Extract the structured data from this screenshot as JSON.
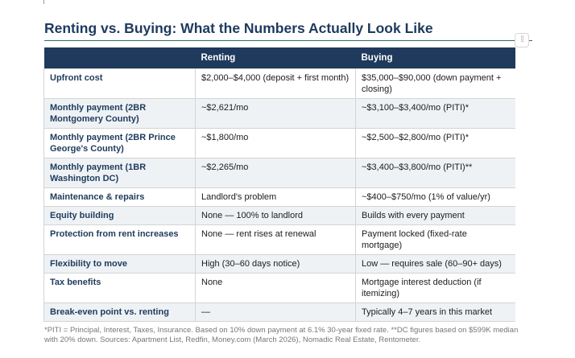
{
  "title": "Renting vs. Buying: What the Numbers Actually Look Like",
  "handle_icon": "drag-dots-icon",
  "table": {
    "headers": [
      "",
      "Renting",
      "Buying"
    ],
    "rows": [
      {
        "label": "Upfront cost",
        "renting": "$2,000–$4,000 (deposit + first month)",
        "buying": "$35,000–$90,000 (down payment + closing)"
      },
      {
        "label": "Monthly payment (2BR Montgomery County)",
        "renting": "~$2,621/mo",
        "buying": "~$3,100–$3,400/mo (PITI)*"
      },
      {
        "label": "Monthly payment (2BR Prince George's County)",
        "renting": "~$1,800/mo",
        "buying": "~$2,500–$2,800/mo (PITI)*"
      },
      {
        "label": "Monthly payment (1BR Washington DC)",
        "renting": "~$2,265/mo",
        "buying": "~$3,400–$3,800/mo (PITI)**"
      },
      {
        "label": "Maintenance & repairs",
        "renting": "Landlord's problem",
        "buying": "~$400–$750/mo (1% of value/yr)"
      },
      {
        "label": "Equity building",
        "renting": "None — 100% to landlord",
        "buying": "Builds with every payment"
      },
      {
        "label": "Protection from rent increases",
        "renting": "None — rent rises at renewal",
        "buying": "Payment locked (fixed-rate mortgage)"
      },
      {
        "label": "Flexibility to move",
        "renting": "High (30–60 days notice)",
        "buying": "Low — requires sale (60–90+ days)"
      },
      {
        "label": "Tax benefits",
        "renting": "None",
        "buying": "Mortgage interest deduction (if itemizing)"
      },
      {
        "label": "Break-even point vs. renting",
        "renting": "—",
        "buying": "Typically 4–7 years in this market"
      }
    ]
  },
  "footnote": "*PITI = Principal, Interest, Taxes, Insurance. Based on 10% down payment at 6.1% 30-year fixed rate. **DC figures based on $599K median with 20% down. Sources: Apartment List, Redfin, Money.com (March 2026), Nomadic Real Estate, Rentometer."
}
